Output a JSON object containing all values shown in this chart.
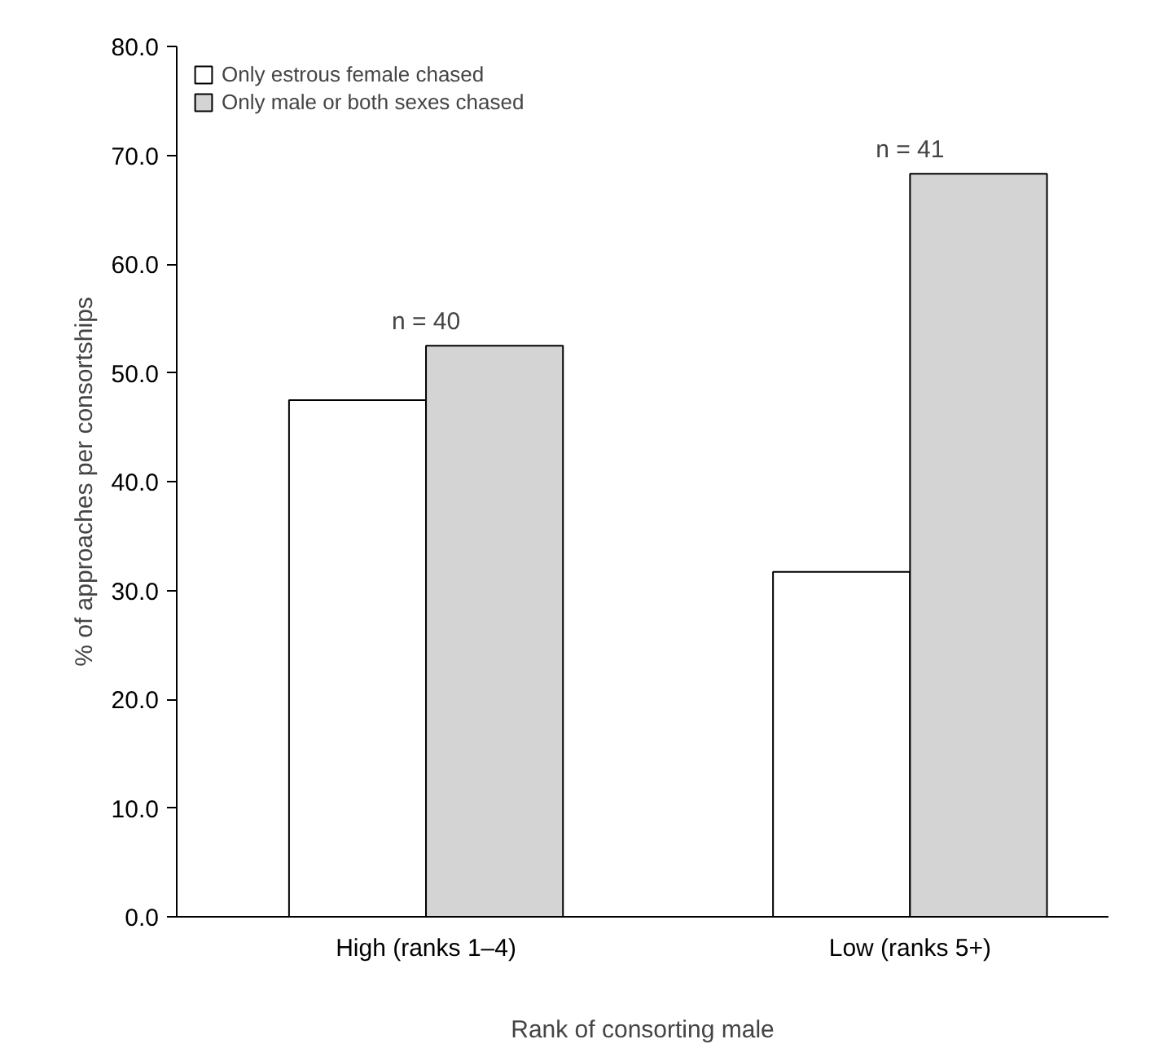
{
  "chart_data": {
    "type": "bar",
    "xlabel": "Rank of consorting male",
    "ylabel": "% of approaches per consortships",
    "categories": [
      "High (ranks 1–4)",
      "Low (ranks 5+)"
    ],
    "series": [
      {
        "name": "Only estrous female chased",
        "color": "#ffffff",
        "values": [
          47.5,
          31.7
        ]
      },
      {
        "name": "Only male or both sexes chased",
        "color": "#d4d4d4",
        "values": [
          52.5,
          68.3
        ]
      }
    ],
    "ylim": [
      0,
      80
    ],
    "yticks": [
      {
        "value": 0,
        "label": "0.0"
      },
      {
        "value": 10,
        "label": "10.0"
      },
      {
        "value": 20,
        "label": "20.0"
      },
      {
        "value": 30,
        "label": "30.0"
      },
      {
        "value": 40,
        "label": "40.0"
      },
      {
        "value": 50,
        "label": "50.0"
      },
      {
        "value": 60,
        "label": "60.0"
      },
      {
        "value": 70,
        "label": "70.0"
      },
      {
        "value": 80,
        "label": "80.0"
      }
    ],
    "annotations": [
      {
        "text": "n = 40",
        "x": "High (ranks 1–4)",
        "y": 52.5
      },
      {
        "text": "n = 41",
        "x": "Low (ranks 5+)",
        "y": 68.3
      }
    ],
    "legend": "top left",
    "grid": false
  }
}
